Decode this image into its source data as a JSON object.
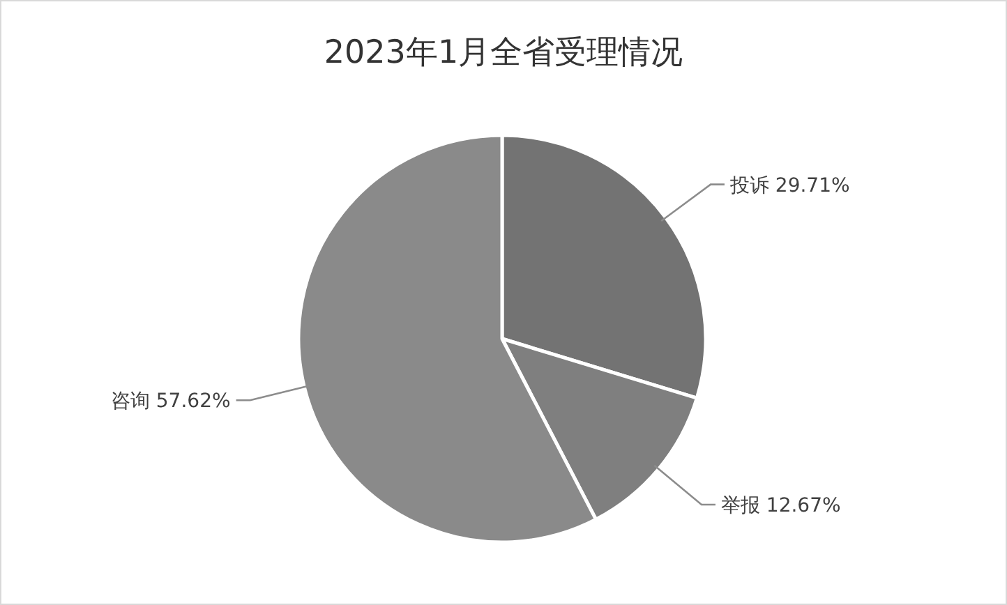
{
  "chart_data": {
    "type": "pie",
    "title": "2023年1月全省受理情况",
    "categories": [
      "投诉",
      "举报",
      "咨询"
    ],
    "values": [
      29.71,
      12.67,
      57.62
    ],
    "value_labels": [
      "29.71%",
      "12.67%",
      "57.62%"
    ],
    "colors": [
      "#737373",
      "#7f7f7f",
      "#8a8a8a"
    ]
  }
}
